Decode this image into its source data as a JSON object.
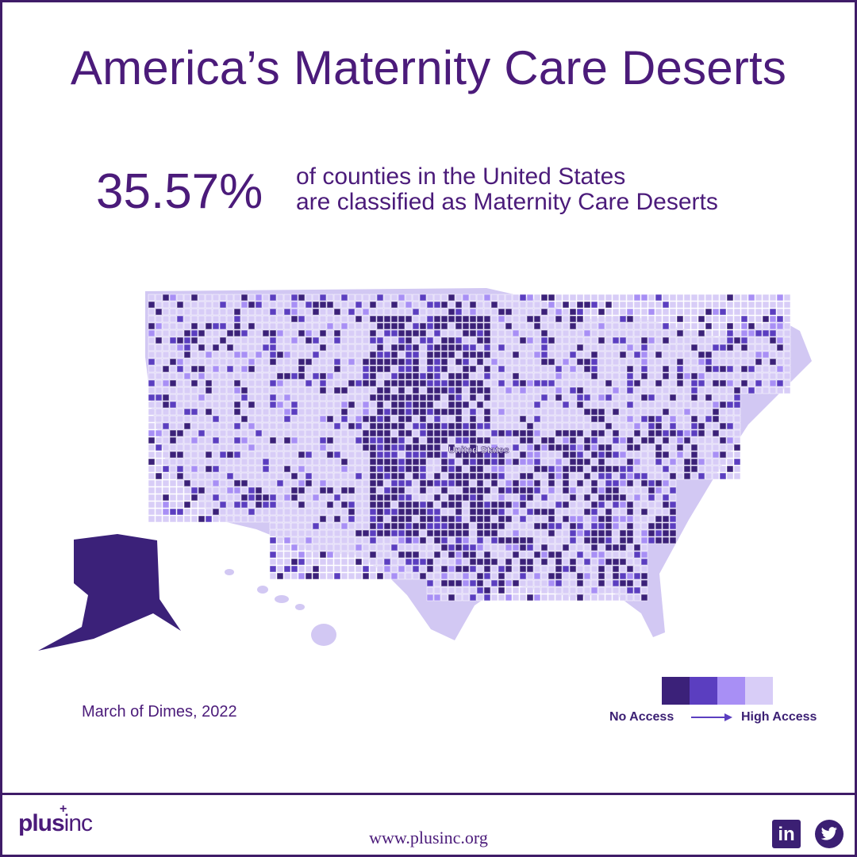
{
  "title": "America’s Maternity Care Deserts",
  "stat": {
    "value": "35.57%",
    "line1": "of counties in the United States",
    "line2": "are classified as Maternity Care Deserts"
  },
  "map": {
    "center_label": "United States",
    "colors": {
      "no_access": "#3b2179",
      "low_access": "#5b3ec0",
      "moderate_access": "#a88ff5",
      "high_access": "#d8cdf7",
      "land_default": "#d2c8f3"
    }
  },
  "source": "March of Dimes, 2022",
  "legend": {
    "low_label": "No Access",
    "high_label": "High Access"
  },
  "footer": {
    "logo_plus": "plus",
    "logo_inc": "inc",
    "logo_cross": "+",
    "url": "www.plusinc.org",
    "linkedin_text": "in"
  }
}
